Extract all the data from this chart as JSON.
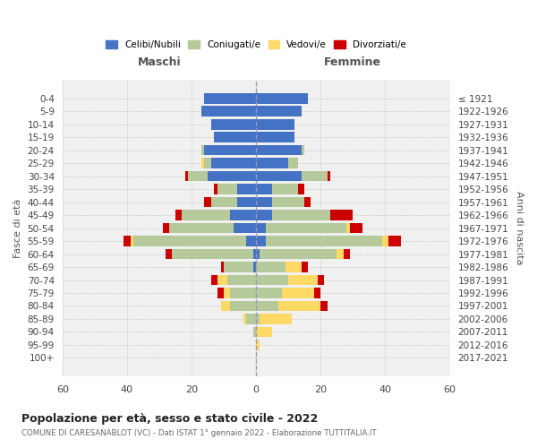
{
  "age_groups": [
    "0-4",
    "5-9",
    "10-14",
    "15-19",
    "20-24",
    "25-29",
    "30-34",
    "35-39",
    "40-44",
    "45-49",
    "50-54",
    "55-59",
    "60-64",
    "65-69",
    "70-74",
    "75-79",
    "80-84",
    "85-89",
    "90-94",
    "95-99",
    "100+"
  ],
  "birth_years": [
    "2017-2021",
    "2012-2016",
    "2007-2011",
    "2002-2006",
    "1997-2001",
    "1992-1996",
    "1987-1991",
    "1982-1986",
    "1977-1981",
    "1972-1976",
    "1967-1971",
    "1962-1966",
    "1957-1961",
    "1952-1956",
    "1947-1951",
    "1942-1946",
    "1937-1941",
    "1932-1936",
    "1927-1931",
    "1922-1926",
    "≤ 1921"
  ],
  "maschi_celibi": [
    16,
    17,
    14,
    13,
    16,
    14,
    15,
    6,
    6,
    8,
    7,
    3,
    1,
    1,
    0,
    0,
    0,
    0,
    0,
    0,
    0
  ],
  "maschi_coniugati": [
    0,
    0,
    0,
    0,
    1,
    2,
    6,
    6,
    8,
    15,
    20,
    35,
    25,
    9,
    9,
    8,
    8,
    3,
    1,
    0,
    0
  ],
  "maschi_vedovi": [
    0,
    0,
    0,
    0,
    0,
    1,
    0,
    0,
    0,
    0,
    0,
    1,
    0,
    0,
    3,
    2,
    3,
    1,
    0,
    0,
    0
  ],
  "maschi_divorziati": [
    0,
    0,
    0,
    0,
    0,
    0,
    1,
    1,
    2,
    2,
    2,
    2,
    2,
    1,
    2,
    2,
    0,
    0,
    0,
    0,
    0
  ],
  "femmine_nubili": [
    16,
    14,
    12,
    12,
    14,
    10,
    14,
    5,
    5,
    5,
    3,
    3,
    1,
    0,
    0,
    0,
    0,
    0,
    0,
    0,
    0
  ],
  "femmine_coniugate": [
    0,
    0,
    0,
    0,
    1,
    3,
    8,
    8,
    10,
    18,
    25,
    36,
    24,
    9,
    10,
    8,
    7,
    1,
    0,
    0,
    0
  ],
  "femmine_vedove": [
    0,
    0,
    0,
    0,
    0,
    0,
    0,
    0,
    0,
    0,
    1,
    2,
    2,
    5,
    9,
    10,
    13,
    10,
    5,
    1,
    0
  ],
  "femmine_divorziate": [
    0,
    0,
    0,
    0,
    0,
    0,
    1,
    2,
    2,
    7,
    4,
    4,
    2,
    2,
    2,
    2,
    2,
    0,
    0,
    0,
    0
  ],
  "color_celibi": "#4472c4",
  "color_coniugati": "#b5c99a",
  "color_vedovi": "#ffd966",
  "color_divorziati": "#cc0000",
  "xlim": 60,
  "title": "Popolazione per età, sesso e stato civile - 2022",
  "subtitle": "COMUNE DI CARESANABLOT (VC) - Dati ISTAT 1° gennaio 2022 - Elaborazione TUTTITALIA.IT",
  "ylabel_left": "Fasce di età",
  "ylabel_right": "Anni di nascita",
  "header_left": "Maschi",
  "header_right": "Femmine",
  "bg_color": "#f0f0f0",
  "grid_color": "#cccccc",
  "legend_labels": [
    "Celibi/Nubili",
    "Coniugati/e",
    "Vedovi/e",
    "Divorziati/e"
  ]
}
